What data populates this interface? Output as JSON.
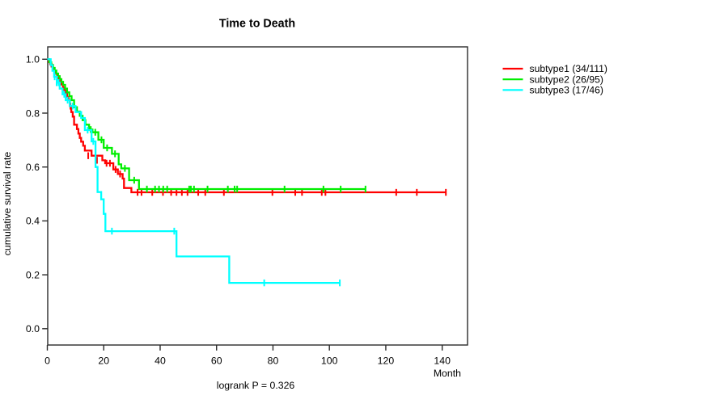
{
  "chart_data": {
    "type": "line",
    "variant": "kaplan-meier-step",
    "title": "Time to Death",
    "xlabel": "Month",
    "ylabel": "cumulative survival rate",
    "annotation": "logrank P = 0.326",
    "grid": false,
    "legend_position": "right-outside",
    "xlim": [
      0,
      149
    ],
    "ylim": [
      0.0,
      1.0
    ],
    "x_ticks": [
      0,
      20,
      40,
      60,
      80,
      100,
      120,
      140
    ],
    "y_tick_labels": [
      "0.0",
      "0.2",
      "0.4",
      "0.6",
      "0.8",
      "1.0"
    ],
    "y_tick_values": [
      0.0,
      0.2,
      0.4,
      0.6,
      0.8,
      1.0
    ],
    "series": [
      {
        "name": "subtype1",
        "label": "subtype1 (34/111)",
        "events": 34,
        "n": 111,
        "color": "#ff0000",
        "end_time": 141.5,
        "points": [
          [
            0,
            1.0
          ],
          [
            0.5,
            0.991
          ],
          [
            1,
            0.982
          ],
          [
            1.5,
            0.973
          ],
          [
            2,
            0.964
          ],
          [
            2.5,
            0.955
          ],
          [
            3,
            0.946
          ],
          [
            3.5,
            0.937
          ],
          [
            4,
            0.928
          ],
          [
            4.5,
            0.917
          ],
          [
            5,
            0.906
          ],
          [
            5.5,
            0.895
          ],
          [
            6,
            0.884
          ],
          [
            6.5,
            0.872
          ],
          [
            7,
            0.86
          ],
          [
            7.5,
            0.849
          ],
          [
            8,
            0.826
          ],
          [
            8.5,
            0.804
          ],
          [
            9,
            0.787
          ],
          [
            9.5,
            0.757
          ],
          [
            10.5,
            0.741
          ],
          [
            11,
            0.724
          ],
          [
            11.5,
            0.708
          ],
          [
            12,
            0.694
          ],
          [
            12.7,
            0.679
          ],
          [
            13.3,
            0.661
          ],
          [
            15.7,
            0.642
          ],
          [
            19.5,
            0.625
          ],
          [
            20.5,
            0.614
          ],
          [
            23.4,
            0.591
          ],
          [
            25,
            0.574
          ],
          [
            26.7,
            0.557
          ],
          [
            27.2,
            0.522
          ],
          [
            29.8,
            0.506
          ]
        ],
        "censors": [
          [
            6.2,
            0.884
          ],
          [
            8.2,
            0.826
          ],
          [
            14.5,
            0.642
          ],
          [
            17.6,
            0.625
          ],
          [
            21,
            0.614
          ],
          [
            22.2,
            0.614
          ],
          [
            24.2,
            0.591
          ],
          [
            25.8,
            0.574
          ],
          [
            32,
            0.506
          ],
          [
            33.4,
            0.506
          ],
          [
            37.2,
            0.506
          ],
          [
            41,
            0.506
          ],
          [
            43.9,
            0.506
          ],
          [
            45.8,
            0.506
          ],
          [
            47.7,
            0.506
          ],
          [
            49.7,
            0.506
          ],
          [
            53.5,
            0.506
          ],
          [
            56,
            0.506
          ],
          [
            62.6,
            0.506
          ],
          [
            79.8,
            0.506
          ],
          [
            87.9,
            0.506
          ],
          [
            90.3,
            0.506
          ],
          [
            97.3,
            0.506
          ],
          [
            98.6,
            0.506
          ],
          [
            123.7,
            0.506
          ],
          [
            131,
            0.506
          ],
          [
            141.3,
            0.506
          ]
        ]
      },
      {
        "name": "subtype2",
        "label": "subtype2 (26/95)",
        "events": 26,
        "n": 95,
        "color": "#00ee00",
        "end_time": 112.8,
        "points": [
          [
            0,
            1.0
          ],
          [
            0.7,
            0.989
          ],
          [
            1.4,
            0.979
          ],
          [
            2,
            0.968
          ],
          [
            2.6,
            0.958
          ],
          [
            3.2,
            0.947
          ],
          [
            3.8,
            0.937
          ],
          [
            4.4,
            0.926
          ],
          [
            5,
            0.916
          ],
          [
            5.6,
            0.905
          ],
          [
            6.3,
            0.891
          ],
          [
            7,
            0.877
          ],
          [
            7.8,
            0.863
          ],
          [
            8.6,
            0.848
          ],
          [
            9.5,
            0.822
          ],
          [
            10.5,
            0.806
          ],
          [
            11.5,
            0.79
          ],
          [
            12.5,
            0.774
          ],
          [
            13.5,
            0.757
          ],
          [
            14.8,
            0.739
          ],
          [
            16,
            0.729
          ],
          [
            18.1,
            0.701
          ],
          [
            20,
            0.671
          ],
          [
            22.9,
            0.649
          ],
          [
            25.3,
            0.61
          ],
          [
            26.2,
            0.595
          ],
          [
            29,
            0.551
          ],
          [
            32.5,
            0.518
          ]
        ],
        "censors": [
          [
            15.4,
            0.739
          ],
          [
            17,
            0.729
          ],
          [
            19.2,
            0.701
          ],
          [
            21.2,
            0.671
          ],
          [
            24,
            0.649
          ],
          [
            27.5,
            0.595
          ],
          [
            30.8,
            0.551
          ],
          [
            35.3,
            0.518
          ],
          [
            38.2,
            0.518
          ],
          [
            39.6,
            0.518
          ],
          [
            41.1,
            0.518
          ],
          [
            42.5,
            0.518
          ],
          [
            50.3,
            0.518
          ],
          [
            50.9,
            0.518
          ],
          [
            52,
            0.518
          ],
          [
            56.8,
            0.518
          ],
          [
            64,
            0.518
          ],
          [
            66.4,
            0.518
          ],
          [
            67.3,
            0.518
          ],
          [
            84.1,
            0.518
          ],
          [
            97.9,
            0.518
          ],
          [
            104,
            0.518
          ],
          [
            112.8,
            0.518
          ]
        ]
      },
      {
        "name": "subtype3",
        "label": "subtype3 (17/46)",
        "events": 17,
        "n": 46,
        "color": "#00ffff",
        "end_time": 103.7,
        "points": [
          [
            0,
            1.0
          ],
          [
            1.2,
            0.978
          ],
          [
            1.8,
            0.957
          ],
          [
            2.4,
            0.935
          ],
          [
            3.4,
            0.913
          ],
          [
            4.4,
            0.891
          ],
          [
            5.4,
            0.87
          ],
          [
            6.5,
            0.848
          ],
          [
            8,
            0.826
          ],
          [
            10,
            0.804
          ],
          [
            12,
            0.782
          ],
          [
            13.3,
            0.737
          ],
          [
            15.7,
            0.695
          ],
          [
            17.1,
            0.6
          ],
          [
            17.8,
            0.507
          ],
          [
            19.1,
            0.48
          ],
          [
            20,
            0.426
          ],
          [
            20.6,
            0.362
          ],
          [
            45.8,
            0.268
          ],
          [
            64.5,
            0.17
          ]
        ],
        "censors": [
          [
            2.6,
            0.935
          ],
          [
            3.3,
            0.913
          ],
          [
            4.0,
            0.913
          ],
          [
            6.0,
            0.87
          ],
          [
            7.2,
            0.848
          ],
          [
            9,
            0.826
          ],
          [
            14.3,
            0.737
          ],
          [
            16.3,
            0.695
          ],
          [
            22.9,
            0.362
          ],
          [
            45,
            0.362
          ],
          [
            76.9,
            0.17
          ],
          [
            103.7,
            0.17
          ]
        ]
      }
    ],
    "colors": {
      "axis": "#2b2b2b",
      "text": "#000000",
      "background": "#ffffff"
    }
  }
}
